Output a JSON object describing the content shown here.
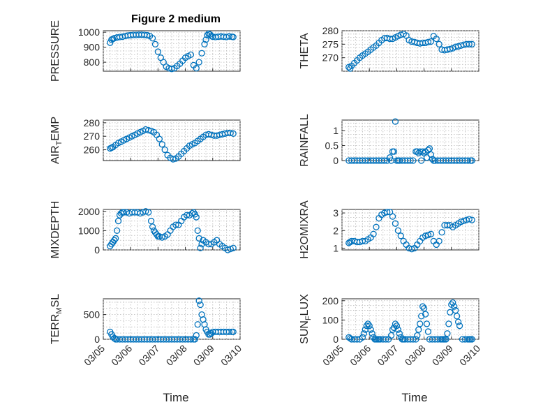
{
  "figure": {
    "title": "Figure 2 medium",
    "x_tick_labels": [
      "03/05",
      "03/06",
      "03/07",
      "03/08",
      "03/09",
      "03/10"
    ],
    "xlabel": "Time",
    "marker_color": "#0072bd"
  },
  "chart_data": [
    {
      "type": "scatter",
      "key": "pressure",
      "ylabel": "PRESSURE",
      "xlim": [
        0,
        5
      ],
      "ylim": [
        740,
        1010
      ],
      "yticks": [
        800,
        900,
        1000
      ],
      "x": [
        0.25,
        0.3,
        0.35,
        0.4,
        0.5,
        0.6,
        0.7,
        0.8,
        0.9,
        1.0,
        1.1,
        1.2,
        1.3,
        1.4,
        1.5,
        1.6,
        1.7,
        1.8,
        1.9,
        2.0,
        2.1,
        2.2,
        2.3,
        2.4,
        2.5,
        2.6,
        2.7,
        2.8,
        2.9,
        3.0,
        3.1,
        3.2,
        3.3,
        3.4,
        3.5,
        3.6,
        3.7,
        3.75,
        3.8,
        3.85,
        3.9,
        3.95,
        4.0,
        4.1,
        4.2,
        4.3,
        4.4,
        4.5,
        4.6,
        4.7,
        4.75
      ],
      "y": [
        930,
        950,
        955,
        960,
        965,
        968,
        970,
        975,
        978,
        980,
        982,
        982,
        983,
        983,
        982,
        980,
        975,
        960,
        920,
        870,
        830,
        800,
        770,
        760,
        755,
        760,
        775,
        790,
        810,
        830,
        840,
        850,
        780,
        760,
        800,
        860,
        920,
        950,
        980,
        990,
        985,
        975,
        970,
        968,
        970,
        972,
        970,
        968,
        972,
        970,
        968
      ]
    },
    {
      "type": "scatter",
      "key": "theta",
      "ylabel": "THETA",
      "xlim": [
        0,
        5
      ],
      "ylim": [
        265,
        280
      ],
      "yticks": [
        270,
        275,
        280
      ],
      "x": [
        0.25,
        0.3,
        0.35,
        0.45,
        0.55,
        0.65,
        0.75,
        0.85,
        0.95,
        1.05,
        1.15,
        1.25,
        1.35,
        1.45,
        1.55,
        1.65,
        1.75,
        1.85,
        1.95,
        2.05,
        2.15,
        2.25,
        2.35,
        2.45,
        2.55,
        2.65,
        2.75,
        2.85,
        2.95,
        3.05,
        3.15,
        3.25,
        3.35,
        3.45,
        3.55,
        3.65,
        3.75,
        3.85,
        3.95,
        4.05,
        4.15,
        4.25,
        4.35,
        4.45,
        4.55,
        4.65,
        4.75
      ],
      "y": [
        266.5,
        266,
        267,
        268,
        269,
        270,
        270.8,
        271.5,
        272.2,
        273,
        273.8,
        274.5,
        275.5,
        276.5,
        277.2,
        277.3,
        277,
        277,
        277.5,
        278,
        278.5,
        278.8,
        278.2,
        276.5,
        276,
        275.8,
        275.5,
        275.3,
        275.5,
        275.5,
        275.8,
        276,
        278,
        277,
        275,
        273,
        272.8,
        273,
        273.2,
        273.5,
        274,
        274.2,
        274.5,
        274.8,
        275,
        275,
        275
      ]
    },
    {
      "type": "scatter",
      "key": "air_temp",
      "ylabel": "AIR_TEMP",
      "xlim": [
        0,
        5
      ],
      "ylim": [
        252,
        282
      ],
      "yticks": [
        260,
        270,
        280
      ],
      "x": [
        0.25,
        0.3,
        0.35,
        0.45,
        0.55,
        0.65,
        0.75,
        0.85,
        0.95,
        1.05,
        1.15,
        1.25,
        1.35,
        1.45,
        1.55,
        1.65,
        1.75,
        1.85,
        1.95,
        2.05,
        2.15,
        2.25,
        2.35,
        2.45,
        2.55,
        2.65,
        2.75,
        2.85,
        2.95,
        3.05,
        3.15,
        3.25,
        3.35,
        3.45,
        3.55,
        3.65,
        3.75,
        3.85,
        3.95,
        4.05,
        4.15,
        4.25,
        4.35,
        4.45,
        4.55,
        4.65,
        4.75
      ],
      "y": [
        261,
        261.5,
        262,
        263.5,
        265,
        266,
        267,
        268,
        269,
        270,
        271,
        272,
        273,
        274,
        275,
        274.5,
        274,
        273,
        271,
        268,
        264,
        260,
        256,
        254,
        253,
        253.5,
        255,
        257,
        259,
        261,
        263,
        264,
        265,
        266.5,
        268,
        269.5,
        271,
        271.5,
        271,
        270.5,
        270.5,
        271,
        271.5,
        272,
        272.5,
        272.5,
        272
      ]
    },
    {
      "type": "scatter",
      "key": "rainfall",
      "ylabel": "RAINFALL",
      "xlim": [
        0,
        5
      ],
      "ylim": [
        0,
        1.35
      ],
      "yticks": [
        0,
        0.5,
        1
      ],
      "x": [
        0.25,
        0.35,
        0.45,
        0.55,
        0.65,
        0.75,
        0.85,
        0.95,
        1.05,
        1.15,
        1.25,
        1.35,
        1.45,
        1.55,
        1.65,
        1.75,
        1.8,
        1.85,
        1.9,
        1.95,
        2.0,
        2.05,
        2.1,
        2.2,
        2.3,
        2.4,
        2.5,
        2.6,
        2.7,
        2.75,
        2.8,
        2.85,
        2.9,
        2.95,
        3.0,
        3.05,
        3.1,
        3.15,
        3.2,
        3.25,
        3.3,
        3.35,
        3.4,
        3.5,
        3.6,
        3.7,
        3.8,
        3.9,
        4.0,
        4.1,
        4.2,
        4.3,
        4.4,
        4.5,
        4.6,
        4.7,
        4.75
      ],
      "y": [
        0,
        0,
        0,
        0,
        0,
        0,
        0,
        0,
        0,
        0,
        0,
        0,
        0,
        0,
        0,
        0.1,
        0,
        0.3,
        0.3,
        1.3,
        0,
        0,
        0,
        0,
        0,
        0,
        0,
        0,
        0.3,
        0.3,
        0.25,
        0.3,
        0,
        0.3,
        0.25,
        0.3,
        0.1,
        0.35,
        0.4,
        0.2,
        0.05,
        0,
        0,
        0,
        0,
        0,
        0,
        0,
        0,
        0,
        0,
        0,
        0,
        0,
        0,
        0,
        0
      ]
    },
    {
      "type": "scatter",
      "key": "mixdepth",
      "ylabel": "MIXDEPTH",
      "xlim": [
        0,
        5
      ],
      "ylim": [
        0,
        2100
      ],
      "yticks": [
        0,
        1000,
        2000
      ],
      "x": [
        0.25,
        0.3,
        0.35,
        0.4,
        0.45,
        0.5,
        0.55,
        0.6,
        0.65,
        0.7,
        0.75,
        0.85,
        0.95,
        1.05,
        1.15,
        1.25,
        1.35,
        1.45,
        1.55,
        1.65,
        1.75,
        1.8,
        1.85,
        1.9,
        1.95,
        2.0,
        2.05,
        2.15,
        2.25,
        2.35,
        2.45,
        2.55,
        2.65,
        2.75,
        2.85,
        2.95,
        3.05,
        3.15,
        3.25,
        3.3,
        3.35,
        3.4,
        3.45,
        3.5,
        3.55,
        3.6,
        3.65,
        3.75,
        3.85,
        3.95,
        4.05,
        4.15,
        4.25,
        4.35,
        4.45,
        4.55,
        4.65,
        4.75
      ],
      "y": [
        200,
        300,
        400,
        500,
        600,
        1000,
        1500,
        1800,
        1900,
        1950,
        1950,
        1950,
        1900,
        1950,
        1950,
        1950,
        1900,
        1950,
        2000,
        1950,
        1500,
        1200,
        1000,
        900,
        800,
        700,
        700,
        650,
        700,
        800,
        1000,
        1200,
        1300,
        1300,
        1500,
        1700,
        1800,
        1800,
        1900,
        1950,
        1850,
        1700,
        1000,
        600,
        100,
        300,
        500,
        400,
        300,
        300,
        400,
        500,
        300,
        200,
        100,
        0,
        50,
        100
      ]
    },
    {
      "type": "scatter",
      "key": "h2omixra",
      "ylabel": "H2OMIXRA",
      "xlim": [
        0,
        5
      ],
      "ylim": [
        0.9,
        3.2
      ],
      "yticks": [
        1,
        2,
        3
      ],
      "x": [
        0.25,
        0.3,
        0.35,
        0.45,
        0.55,
        0.65,
        0.75,
        0.85,
        0.95,
        1.05,
        1.15,
        1.25,
        1.35,
        1.45,
        1.55,
        1.65,
        1.75,
        1.85,
        1.95,
        2.05,
        2.15,
        2.25,
        2.35,
        2.45,
        2.55,
        2.65,
        2.75,
        2.85,
        2.95,
        3.05,
        3.15,
        3.25,
        3.35,
        3.45,
        3.55,
        3.65,
        3.75,
        3.85,
        3.95,
        4.05,
        4.15,
        4.25,
        4.35,
        4.45,
        4.55,
        4.65,
        4.75
      ],
      "y": [
        1.3,
        1.35,
        1.4,
        1.4,
        1.35,
        1.35,
        1.4,
        1.4,
        1.5,
        1.6,
        1.8,
        2.2,
        2.7,
        2.9,
        3.0,
        3.05,
        3.05,
        2.8,
        2.4,
        2.0,
        1.7,
        1.4,
        1.2,
        1.0,
        0.95,
        1.0,
        1.2,
        1.4,
        1.6,
        1.7,
        1.75,
        1.8,
        1.4,
        1.2,
        1.4,
        1.9,
        2.3,
        2.3,
        2.3,
        2.2,
        2.3,
        2.4,
        2.5,
        2.55,
        2.6,
        2.65,
        2.6
      ]
    },
    {
      "type": "scatter",
      "key": "terr_msl",
      "ylabel": "TERR_MSL",
      "xlim": [
        0,
        5
      ],
      "ylim": [
        0,
        820
      ],
      "yticks": [
        0,
        500
      ],
      "x": [
        0.25,
        0.3,
        0.35,
        0.4,
        0.45,
        0.5,
        0.6,
        0.7,
        0.8,
        0.9,
        1.0,
        1.1,
        1.2,
        1.3,
        1.4,
        1.5,
        1.6,
        1.7,
        1.8,
        1.9,
        2.0,
        2.1,
        2.2,
        2.3,
        2.4,
        2.5,
        2.6,
        2.7,
        2.8,
        2.9,
        3.0,
        3.1,
        3.2,
        3.3,
        3.35,
        3.4,
        3.45,
        3.5,
        3.55,
        3.6,
        3.65,
        3.7,
        3.75,
        3.8,
        3.85,
        3.9,
        3.95,
        4.0,
        4.1,
        4.2,
        4.3,
        4.4,
        4.5,
        4.6,
        4.7,
        4.75
      ],
      "y": [
        150,
        100,
        50,
        20,
        0,
        0,
        0,
        0,
        0,
        0,
        0,
        0,
        0,
        0,
        0,
        0,
        0,
        0,
        0,
        0,
        0,
        0,
        0,
        0,
        0,
        0,
        0,
        0,
        0,
        0,
        0,
        0,
        0,
        0,
        0,
        80,
        300,
        780,
        700,
        500,
        400,
        300,
        200,
        150,
        100,
        100,
        120,
        150,
        150,
        150,
        150,
        150,
        150,
        150,
        150,
        150
      ]
    },
    {
      "type": "scatter",
      "key": "sun_flux",
      "ylabel": "SUN_FLUX",
      "xlim": [
        0,
        5
      ],
      "ylim": [
        0,
        210
      ],
      "yticks": [
        0,
        100,
        200
      ],
      "x": [
        0.25,
        0.3,
        0.35,
        0.45,
        0.55,
        0.65,
        0.75,
        0.8,
        0.85,
        0.9,
        0.95,
        1.0,
        1.05,
        1.1,
        1.15,
        1.2,
        1.25,
        1.3,
        1.35,
        1.4,
        1.5,
        1.6,
        1.7,
        1.8,
        1.85,
        1.9,
        1.95,
        2.0,
        2.05,
        2.1,
        2.15,
        2.2,
        2.25,
        2.3,
        2.4,
        2.5,
        2.6,
        2.7,
        2.75,
        2.8,
        2.85,
        2.9,
        2.95,
        3.0,
        3.05,
        3.1,
        3.15,
        3.2,
        3.3,
        3.4,
        3.5,
        3.6,
        3.65,
        3.7,
        3.75,
        3.8,
        3.85,
        3.9,
        3.95,
        4.0,
        4.05,
        4.1,
        4.15,
        4.2,
        4.25,
        4.3,
        4.4,
        4.5,
        4.6,
        4.65,
        4.7,
        4.75
      ],
      "y": [
        10,
        5,
        0,
        0,
        0,
        0,
        10,
        30,
        50,
        70,
        80,
        70,
        50,
        30,
        10,
        0,
        0,
        0,
        0,
        0,
        0,
        0,
        0,
        20,
        50,
        60,
        80,
        70,
        50,
        30,
        10,
        0,
        0,
        0,
        0,
        0,
        0,
        0,
        20,
        50,
        80,
        120,
        170,
        160,
        130,
        80,
        40,
        0,
        0,
        0,
        0,
        0,
        0,
        0,
        0,
        0,
        30,
        80,
        140,
        180,
        190,
        170,
        150,
        120,
        90,
        70,
        0,
        0,
        0,
        0,
        0,
        0
      ]
    }
  ]
}
